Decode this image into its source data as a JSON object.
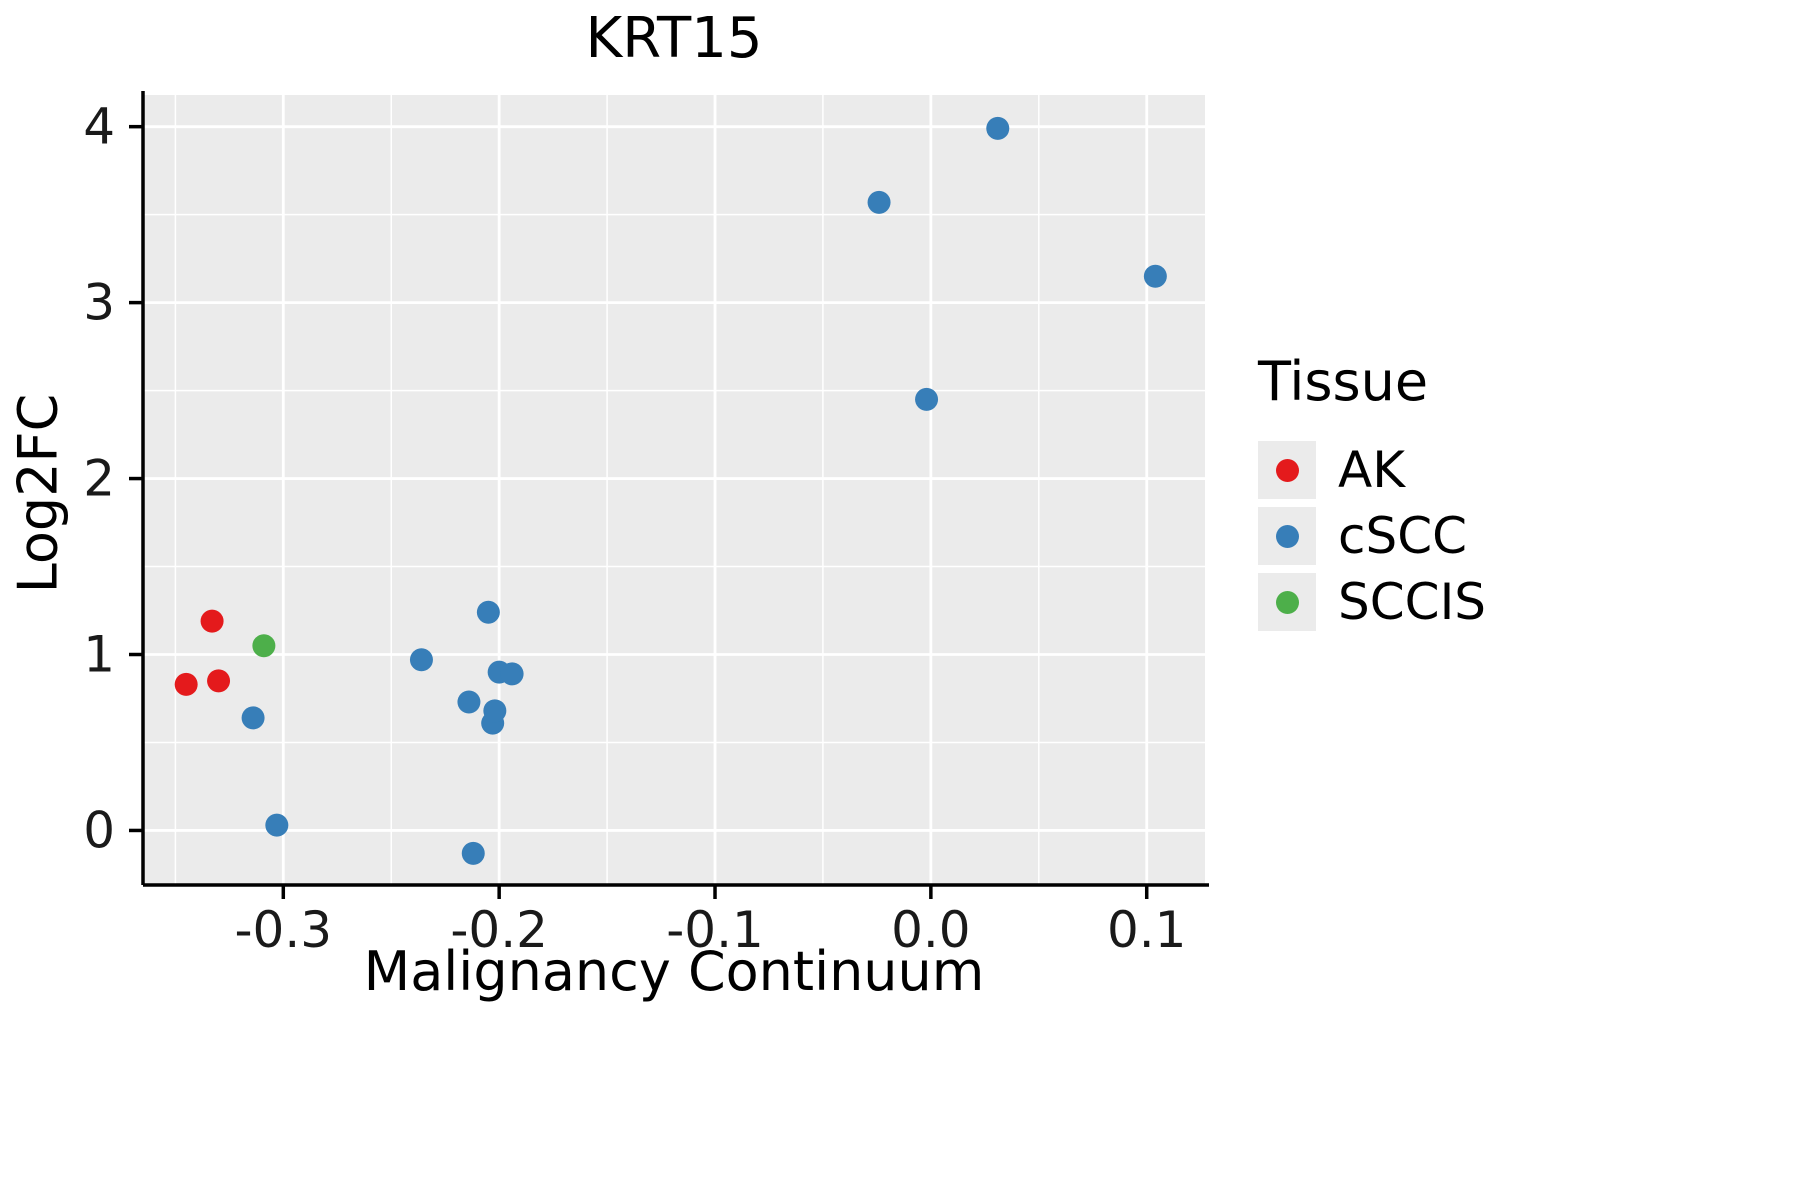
{
  "chart_data": {
    "type": "scatter",
    "title": "KRT15",
    "xlabel": "Malignancy Continuum",
    "ylabel": "Log2FC",
    "xlim": [
      -0.365,
      0.127
    ],
    "ylim": [
      -0.31,
      4.18
    ],
    "x_tick_values": [
      -0.3,
      -0.2,
      -0.1,
      0.0,
      0.1
    ],
    "x_tick_labels": [
      "-0.3",
      "-0.2",
      "-0.1",
      "0.0",
      "0.1"
    ],
    "x_minor_ticks": [
      -0.35,
      -0.25,
      -0.15,
      -0.05,
      0.05
    ],
    "y_tick_values": [
      0,
      1,
      2,
      3,
      4
    ],
    "y_tick_labels": [
      "0",
      "1",
      "2",
      "3",
      "4"
    ],
    "y_minor_ticks": [
      -0.5,
      0.5,
      1.5,
      2.5,
      3.5
    ],
    "legend_title": "Tissue",
    "legend_position": "right",
    "grid": true,
    "panel_background": "#ebebeb",
    "grid_color": "#ffffff",
    "axis_color": "#000000",
    "series": [
      {
        "name": "AK",
        "color": "#e41a1c",
        "points": [
          [
            -0.345,
            0.83
          ],
          [
            -0.333,
            1.19
          ],
          [
            -0.33,
            0.85
          ]
        ]
      },
      {
        "name": "cSCC",
        "color": "#377eb8",
        "points": [
          [
            -0.314,
            0.64
          ],
          [
            -0.303,
            0.03
          ],
          [
            -0.236,
            0.97
          ],
          [
            -0.214,
            0.73
          ],
          [
            -0.212,
            -0.13
          ],
          [
            -0.205,
            1.24
          ],
          [
            -0.203,
            0.61
          ],
          [
            -0.202,
            0.68
          ],
          [
            -0.2,
            0.9
          ],
          [
            -0.194,
            0.89
          ],
          [
            -0.024,
            3.57
          ],
          [
            -0.002,
            2.45
          ],
          [
            0.031,
            3.99
          ],
          [
            0.104,
            3.15
          ]
        ]
      },
      {
        "name": "SCCIS",
        "color": "#4daf4a",
        "points": [
          [
            -0.309,
            1.05
          ]
        ]
      }
    ]
  }
}
